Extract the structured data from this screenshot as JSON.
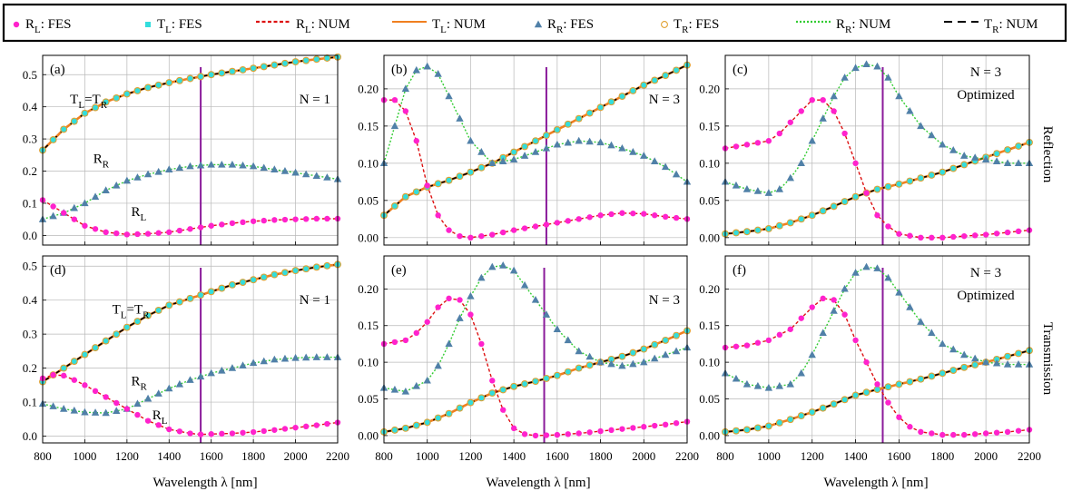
{
  "legend": {
    "items": [
      {
        "main": "R",
        "sub": "L",
        "suffix": ": FES",
        "marker": "dot",
        "color": "#ff22cc"
      },
      {
        "main": "T",
        "sub": "L",
        "suffix": ": FES",
        "marker": "square",
        "color": "#33dddd"
      },
      {
        "main": "R",
        "sub": "L",
        "suffix": ": NUM",
        "marker": "dash",
        "color": "#dd1111"
      },
      {
        "main": "T",
        "sub": "L",
        "suffix": ": NUM",
        "marker": "solid",
        "color": "#f08020"
      },
      {
        "main": "R",
        "sub": "R",
        "suffix": ": FES",
        "marker": "triangle",
        "color": "#5080a8"
      },
      {
        "main": "T",
        "sub": "R",
        "suffix": ": FES",
        "marker": "circle",
        "color": "#e0a030"
      },
      {
        "main": "R",
        "sub": "R",
        "suffix": ": NUM",
        "marker": "dot-line",
        "color": "#33cc33"
      },
      {
        "main": "T",
        "sub": "R",
        "suffix": ": NUM",
        "marker": "longdash",
        "color": "#000000"
      }
    ]
  },
  "row_labels": {
    "top": "Reflection",
    "bottom": "Transmission"
  },
  "xlabel": "Wavelength  λ  [nm]",
  "chart_data": [
    {
      "panel": "(a)",
      "type": "line",
      "annotation": "N = 1",
      "xlim": [
        800,
        2200
      ],
      "ylim": [
        -0.03,
        0.56
      ],
      "xticks": [
        800,
        1000,
        1200,
        1400,
        1600,
        1800,
        2000,
        2200
      ],
      "yticks": [
        0.0,
        0.1,
        0.2,
        0.3,
        0.4,
        0.5
      ],
      "ytick_labels": [
        "0.0",
        "0.1",
        "0.2",
        "0.3",
        "0.4",
        "0.5"
      ],
      "vline": 1550,
      "curve_labels": [
        {
          "main": "T",
          "sub": "L",
          "eq": "=",
          "main2": "T",
          "sub2": "R",
          "x": 930,
          "y": 0.41
        },
        {
          "main": "R",
          "sub": "R",
          "x": 1040,
          "y": 0.225
        },
        {
          "main": "R",
          "sub": "L",
          "x": 1220,
          "y": 0.06
        }
      ],
      "series": [
        {
          "name": "R_L",
          "x": [
            800,
            900,
            1000,
            1100,
            1200,
            1300,
            1400,
            1500,
            1600,
            1700,
            1800,
            1900,
            2000,
            2100,
            2200
          ],
          "values": [
            0.11,
            0.07,
            0.03,
            0.01,
            0.003,
            0.005,
            0.01,
            0.02,
            0.03,
            0.038,
            0.044,
            0.048,
            0.05,
            0.052,
            0.052
          ]
        },
        {
          "name": "R_R",
          "x": [
            800,
            900,
            1000,
            1100,
            1200,
            1300,
            1400,
            1500,
            1600,
            1700,
            1800,
            1900,
            2000,
            2100,
            2200
          ],
          "values": [
            0.05,
            0.07,
            0.1,
            0.14,
            0.17,
            0.19,
            0.205,
            0.215,
            0.22,
            0.22,
            0.215,
            0.205,
            0.195,
            0.185,
            0.175
          ]
        },
        {
          "name": "T",
          "x": [
            800,
            900,
            1000,
            1100,
            1200,
            1300,
            1400,
            1500,
            1600,
            1700,
            1800,
            1900,
            2000,
            2100,
            2200
          ],
          "values": [
            0.265,
            0.33,
            0.38,
            0.415,
            0.44,
            0.46,
            0.475,
            0.488,
            0.5,
            0.51,
            0.52,
            0.53,
            0.54,
            0.548,
            0.555
          ]
        }
      ]
    },
    {
      "panel": "(b)",
      "type": "line",
      "annotation": "N = 3",
      "xlim": [
        800,
        2200
      ],
      "ylim": [
        -0.01,
        0.245
      ],
      "xticks": [
        800,
        1000,
        1200,
        1400,
        1600,
        1800,
        2000,
        2200
      ],
      "yticks": [
        0.0,
        0.05,
        0.1,
        0.15,
        0.2
      ],
      "ytick_labels": [
        "0.00",
        "0.05",
        "0.10",
        "0.15",
        "0.20"
      ],
      "vline": 1550,
      "series": [
        {
          "name": "R_L",
          "x": [
            800,
            850,
            900,
            950,
            1000,
            1050,
            1100,
            1150,
            1200,
            1300,
            1400,
            1500,
            1600,
            1700,
            1800,
            1900,
            2000,
            2100,
            2200
          ],
          "values": [
            0.185,
            0.185,
            0.17,
            0.13,
            0.07,
            0.03,
            0.01,
            0.002,
            0.0,
            0.004,
            0.01,
            0.015,
            0.02,
            0.025,
            0.03,
            0.033,
            0.032,
            0.028,
            0.025
          ]
        },
        {
          "name": "R_R",
          "x": [
            800,
            850,
            900,
            950,
            1000,
            1050,
            1100,
            1150,
            1200,
            1300,
            1400,
            1500,
            1600,
            1700,
            1800,
            1900,
            2000,
            2100,
            2200
          ],
          "values": [
            0.1,
            0.15,
            0.2,
            0.225,
            0.23,
            0.22,
            0.19,
            0.16,
            0.13,
            0.1,
            0.105,
            0.115,
            0.125,
            0.13,
            0.128,
            0.12,
            0.11,
            0.095,
            0.075
          ]
        },
        {
          "name": "T",
          "x": [
            800,
            900,
            1000,
            1100,
            1200,
            1300,
            1400,
            1500,
            1600,
            1700,
            1800,
            1900,
            2000,
            2100,
            2200
          ],
          "values": [
            0.03,
            0.055,
            0.068,
            0.077,
            0.088,
            0.1,
            0.115,
            0.13,
            0.145,
            0.16,
            0.175,
            0.19,
            0.205,
            0.218,
            0.232
          ]
        }
      ]
    },
    {
      "panel": "(c)",
      "type": "line",
      "annotation": "N = 3",
      "annotation2": "Optimized",
      "xlim": [
        800,
        2200
      ],
      "ylim": [
        -0.01,
        0.245
      ],
      "xticks": [
        800,
        1000,
        1200,
        1400,
        1600,
        1800,
        2000,
        2200
      ],
      "yticks": [
        0.0,
        0.05,
        0.1,
        0.15,
        0.2
      ],
      "ytick_labels": [
        "0.00",
        "0.05",
        "0.10",
        "0.15",
        "0.20"
      ],
      "vline": 1525,
      "series": [
        {
          "name": "R_L",
          "x": [
            800,
            900,
            1000,
            1050,
            1100,
            1150,
            1200,
            1250,
            1300,
            1350,
            1400,
            1450,
            1500,
            1550,
            1600,
            1700,
            1800,
            1900,
            2000,
            2100,
            2200
          ],
          "values": [
            0.12,
            0.125,
            0.13,
            0.14,
            0.155,
            0.17,
            0.185,
            0.185,
            0.17,
            0.14,
            0.1,
            0.06,
            0.03,
            0.015,
            0.005,
            0.0,
            0.0,
            0.002,
            0.004,
            0.007,
            0.01
          ]
        },
        {
          "name": "R_R",
          "x": [
            800,
            900,
            1000,
            1050,
            1100,
            1150,
            1200,
            1250,
            1300,
            1350,
            1400,
            1450,
            1500,
            1550,
            1600,
            1650,
            1700,
            1800,
            1900,
            2000,
            2100,
            2200
          ],
          "values": [
            0.075,
            0.065,
            0.06,
            0.065,
            0.08,
            0.1,
            0.13,
            0.16,
            0.19,
            0.215,
            0.228,
            0.233,
            0.23,
            0.215,
            0.19,
            0.17,
            0.15,
            0.125,
            0.11,
            0.105,
            0.1,
            0.1
          ]
        },
        {
          "name": "T",
          "x": [
            800,
            900,
            1000,
            1100,
            1200,
            1300,
            1400,
            1500,
            1600,
            1700,
            1800,
            1900,
            2000,
            2100,
            2200
          ],
          "values": [
            0.005,
            0.008,
            0.012,
            0.02,
            0.03,
            0.042,
            0.055,
            0.065,
            0.072,
            0.08,
            0.088,
            0.098,
            0.108,
            0.118,
            0.128
          ]
        }
      ]
    },
    {
      "panel": "(d)",
      "type": "line",
      "annotation": "N = 1",
      "xlim": [
        800,
        2200
      ],
      "ylim": [
        -0.02,
        0.53
      ],
      "xticks": [
        800,
        1000,
        1200,
        1400,
        1600,
        1800,
        2000,
        2200
      ],
      "yticks": [
        0.0,
        0.1,
        0.2,
        0.3,
        0.4,
        0.5
      ],
      "ytick_labels": [
        "0.0",
        "0.1",
        "0.2",
        "0.3",
        "0.4",
        "0.5"
      ],
      "vline": 1550,
      "curve_labels": [
        {
          "main": "T",
          "sub": "L",
          "eq": "=",
          "main2": "T",
          "sub2": "R",
          "x": 1130,
          "y": 0.36
        },
        {
          "main": "R",
          "sub": "R",
          "x": 1220,
          "y": 0.15
        },
        {
          "main": "R",
          "sub": "L",
          "x": 1320,
          "y": 0.05
        }
      ],
      "series": [
        {
          "name": "R_L",
          "x": [
            800,
            850,
            900,
            950,
            1000,
            1100,
            1200,
            1300,
            1400,
            1500,
            1550,
            1600,
            1700,
            1800,
            1900,
            2000,
            2100,
            2200
          ],
          "values": [
            0.17,
            0.18,
            0.178,
            0.165,
            0.15,
            0.115,
            0.08,
            0.045,
            0.02,
            0.008,
            0.005,
            0.006,
            0.008,
            0.012,
            0.018,
            0.025,
            0.032,
            0.04
          ]
        },
        {
          "name": "R_R",
          "x": [
            800,
            900,
            1000,
            1100,
            1200,
            1300,
            1400,
            1500,
            1600,
            1700,
            1800,
            1900,
            2000,
            2100,
            2200
          ],
          "values": [
            0.095,
            0.08,
            0.07,
            0.068,
            0.08,
            0.11,
            0.14,
            0.165,
            0.185,
            0.2,
            0.215,
            0.225,
            0.23,
            0.232,
            0.232
          ]
        },
        {
          "name": "T",
          "x": [
            800,
            900,
            1000,
            1100,
            1200,
            1300,
            1400,
            1500,
            1600,
            1700,
            1800,
            1900,
            2000,
            2100,
            2200
          ],
          "values": [
            0.16,
            0.2,
            0.24,
            0.28,
            0.32,
            0.355,
            0.385,
            0.405,
            0.425,
            0.445,
            0.46,
            0.475,
            0.487,
            0.497,
            0.505
          ]
        }
      ]
    },
    {
      "panel": "(e)",
      "type": "line",
      "annotation": "N = 3",
      "xlim": [
        800,
        2200
      ],
      "ylim": [
        -0.01,
        0.245
      ],
      "xticks": [
        800,
        1000,
        1200,
        1400,
        1600,
        1800,
        2000,
        2200
      ],
      "yticks": [
        0.0,
        0.05,
        0.1,
        0.15,
        0.2
      ],
      "ytick_labels": [
        "0.00",
        "0.05",
        "0.10",
        "0.15",
        "0.20"
      ],
      "vline": 1540,
      "series": [
        {
          "name": "R_L",
          "x": [
            800,
            900,
            950,
            1000,
            1050,
            1100,
            1150,
            1200,
            1250,
            1300,
            1350,
            1400,
            1450,
            1500,
            1600,
            1700,
            1800,
            1900,
            2000,
            2100,
            2200
          ],
          "values": [
            0.125,
            0.13,
            0.14,
            0.155,
            0.175,
            0.187,
            0.185,
            0.165,
            0.125,
            0.075,
            0.035,
            0.01,
            0.002,
            0.0,
            0.001,
            0.003,
            0.006,
            0.009,
            0.012,
            0.015,
            0.019
          ]
        },
        {
          "name": "R_R",
          "x": [
            800,
            900,
            1000,
            1050,
            1100,
            1150,
            1200,
            1250,
            1300,
            1350,
            1400,
            1450,
            1500,
            1550,
            1600,
            1700,
            1800,
            1900,
            2000,
            2100,
            2200
          ],
          "values": [
            0.065,
            0.06,
            0.075,
            0.095,
            0.125,
            0.16,
            0.19,
            0.215,
            0.23,
            0.232,
            0.225,
            0.205,
            0.185,
            0.165,
            0.145,
            0.115,
            0.1,
            0.095,
            0.1,
            0.11,
            0.12
          ]
        },
        {
          "name": "T",
          "x": [
            800,
            900,
            1000,
            1100,
            1200,
            1300,
            1400,
            1500,
            1600,
            1700,
            1800,
            1900,
            2000,
            2100,
            2200
          ],
          "values": [
            0.005,
            0.01,
            0.018,
            0.03,
            0.045,
            0.058,
            0.067,
            0.074,
            0.082,
            0.092,
            0.1,
            0.108,
            0.118,
            0.13,
            0.143
          ]
        }
      ]
    },
    {
      "panel": "(f)",
      "type": "line",
      "annotation": "N = 3",
      "annotation2": "Optimized",
      "xlim": [
        800,
        2200
      ],
      "ylim": [
        -0.01,
        0.245
      ],
      "xticks": [
        800,
        1000,
        1200,
        1400,
        1600,
        1800,
        2000,
        2200
      ],
      "yticks": [
        0.0,
        0.05,
        0.1,
        0.15,
        0.2
      ],
      "ytick_labels": [
        "0.00",
        "0.05",
        "0.10",
        "0.15",
        "0.20"
      ],
      "vline": 1525,
      "series": [
        {
          "name": "R_L",
          "x": [
            800,
            900,
            1000,
            1100,
            1150,
            1200,
            1250,
            1300,
            1350,
            1400,
            1450,
            1500,
            1550,
            1600,
            1650,
            1700,
            1800,
            1900,
            2000,
            2100,
            2200
          ],
          "values": [
            0.12,
            0.123,
            0.13,
            0.145,
            0.16,
            0.175,
            0.187,
            0.185,
            0.165,
            0.13,
            0.1,
            0.07,
            0.045,
            0.025,
            0.012,
            0.005,
            0.001,
            0.001,
            0.003,
            0.005,
            0.008
          ]
        },
        {
          "name": "R_R",
          "x": [
            800,
            900,
            1000,
            1100,
            1150,
            1200,
            1250,
            1300,
            1350,
            1400,
            1450,
            1500,
            1550,
            1600,
            1650,
            1700,
            1800,
            1900,
            2000,
            2100,
            2200
          ],
          "values": [
            0.085,
            0.07,
            0.065,
            0.07,
            0.085,
            0.11,
            0.14,
            0.17,
            0.2,
            0.222,
            0.23,
            0.228,
            0.215,
            0.195,
            0.175,
            0.155,
            0.125,
            0.11,
            0.1,
            0.097,
            0.097
          ]
        },
        {
          "name": "T",
          "x": [
            800,
            900,
            1000,
            1100,
            1200,
            1300,
            1400,
            1500,
            1600,
            1700,
            1800,
            1900,
            2000,
            2100,
            2200
          ],
          "values": [
            0.005,
            0.008,
            0.013,
            0.022,
            0.032,
            0.043,
            0.055,
            0.063,
            0.07,
            0.077,
            0.085,
            0.093,
            0.1,
            0.108,
            0.116
          ]
        }
      ]
    }
  ]
}
